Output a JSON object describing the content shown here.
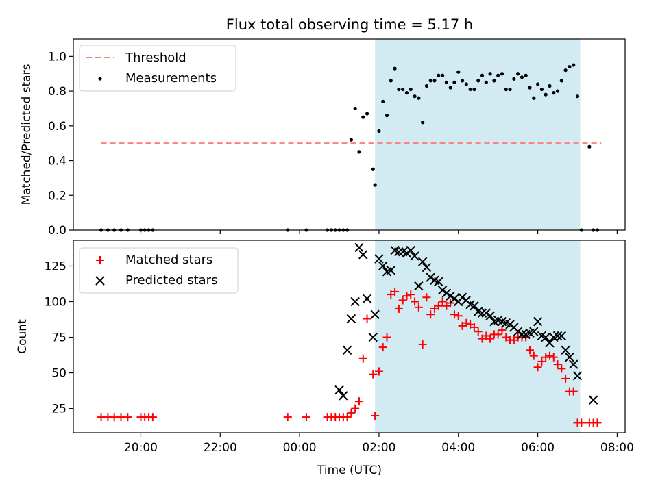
{
  "title": "Flux total observing time = 5.17 h",
  "chart_data": [
    {
      "type": "scatter",
      "panel": "top",
      "ylabel": "Matched/Predicted stars",
      "ylim": [
        0,
        1.1
      ],
      "yticks": [
        "0.0",
        "0.2",
        "0.4",
        "0.6",
        "0.8",
        "1.0"
      ],
      "ytick_values": [
        0,
        0.2,
        0.4,
        0.6,
        0.8,
        1.0
      ],
      "xlim": [
        18.3,
        32.2
      ],
      "grid": false,
      "legend_position": "top-left",
      "legend": [
        "Threshold",
        "Measurements"
      ],
      "highlight_span": [
        25.9,
        31.07
      ],
      "colors": {
        "threshold": "#ff7f7f",
        "measurements": "#000000",
        "span": "#add8e6"
      },
      "series": [
        {
          "name": "Threshold",
          "kind": "dashed-line",
          "x": [
            19.0,
            31.6
          ],
          "y": [
            0.5,
            0.5
          ]
        },
        {
          "name": "Measurements",
          "kind": "dots",
          "x": [
            19.0,
            19.17,
            19.33,
            19.5,
            19.67,
            20.0,
            20.1,
            20.2,
            20.3,
            23.7,
            24.17,
            24.7,
            24.8,
            24.9,
            25.0,
            25.1,
            25.2,
            25.3,
            25.4,
            25.5,
            25.6,
            25.7,
            25.85,
            25.9,
            26.0,
            26.1,
            26.2,
            26.3,
            26.4,
            26.5,
            26.6,
            26.7,
            26.8,
            26.9,
            27.0,
            27.1,
            27.2,
            27.3,
            27.4,
            27.5,
            27.6,
            27.7,
            27.8,
            27.9,
            28.0,
            28.1,
            28.2,
            28.3,
            28.4,
            28.5,
            28.6,
            28.7,
            28.8,
            28.9,
            29.0,
            29.1,
            29.2,
            29.3,
            29.4,
            29.5,
            29.6,
            29.7,
            29.8,
            29.9,
            30.0,
            30.1,
            30.2,
            30.3,
            30.4,
            30.5,
            30.6,
            30.7,
            30.8,
            30.9,
            31.0,
            31.1,
            31.3,
            31.4,
            31.5
          ],
          "y": [
            0.0,
            0.0,
            0.0,
            0.0,
            0.0,
            0.0,
            0.0,
            0.0,
            0.0,
            0.0,
            0.0,
            0.0,
            0.0,
            0.0,
            0.0,
            0.0,
            0.0,
            0.52,
            0.7,
            0.45,
            0.65,
            0.67,
            0.35,
            0.26,
            0.57,
            0.74,
            0.66,
            0.86,
            0.93,
            0.81,
            0.81,
            0.79,
            0.81,
            0.77,
            0.76,
            0.62,
            0.83,
            0.86,
            0.86,
            0.89,
            0.89,
            0.85,
            0.82,
            0.85,
            0.91,
            0.86,
            0.84,
            0.81,
            0.81,
            0.86,
            0.89,
            0.85,
            0.9,
            0.86,
            0.89,
            0.9,
            0.81,
            0.81,
            0.87,
            0.9,
            0.88,
            0.89,
            0.82,
            0.76,
            0.84,
            0.81,
            0.78,
            0.83,
            0.79,
            0.8,
            0.86,
            0.92,
            0.94,
            0.95,
            0.77,
            0.0,
            0.48,
            0.0,
            0.0
          ]
        }
      ]
    },
    {
      "type": "scatter",
      "panel": "bottom",
      "xlabel": "Time (UTC)",
      "ylabel": "Count",
      "ylim": [
        8,
        143
      ],
      "yticks": [
        "25",
        "50",
        "75",
        "100",
        "125"
      ],
      "ytick_values": [
        25,
        50,
        75,
        100,
        125
      ],
      "xlim": [
        18.3,
        32.2
      ],
      "xticks": [
        "20:00",
        "22:00",
        "00:00",
        "02:00",
        "04:00",
        "06:00",
        "08:00"
      ],
      "xtick_values": [
        20,
        22,
        24,
        26,
        28,
        30,
        32
      ],
      "grid": false,
      "legend_position": "top-left",
      "legend": [
        "Matched stars",
        "Predicted stars"
      ],
      "highlight_span": [
        25.9,
        31.07
      ],
      "colors": {
        "matched": "#ff0000",
        "predicted": "#000000",
        "span": "#add8e6"
      },
      "series": [
        {
          "name": "Matched stars",
          "marker": "plus",
          "x": [
            19.0,
            19.17,
            19.33,
            19.5,
            19.67,
            20.0,
            20.1,
            20.2,
            20.3,
            23.7,
            24.17,
            24.7,
            24.8,
            24.9,
            25.0,
            25.1,
            25.2,
            25.3,
            25.4,
            25.5,
            25.6,
            25.7,
            25.85,
            25.9,
            26.0,
            26.1,
            26.2,
            26.3,
            26.4,
            26.5,
            26.6,
            26.7,
            26.8,
            26.9,
            27.0,
            27.1,
            27.2,
            27.3,
            27.4,
            27.5,
            27.6,
            27.7,
            27.8,
            27.9,
            28.0,
            28.1,
            28.2,
            28.3,
            28.4,
            28.5,
            28.6,
            28.7,
            28.8,
            28.9,
            29.0,
            29.1,
            29.2,
            29.3,
            29.4,
            29.5,
            29.6,
            29.7,
            29.8,
            29.9,
            30.0,
            30.1,
            30.2,
            30.3,
            30.4,
            30.5,
            30.6,
            30.7,
            30.8,
            30.9,
            31.0,
            31.1,
            31.3,
            31.4,
            31.5
          ],
          "y": [
            19,
            19,
            19,
            19,
            19,
            19,
            19,
            19,
            19,
            19,
            19,
            19,
            19,
            19,
            19,
            19,
            19,
            22,
            25,
            30,
            60,
            88,
            49,
            20,
            51,
            68,
            75,
            105,
            107,
            95,
            101,
            104,
            105,
            100,
            96,
            70,
            103,
            91,
            95,
            97,
            100,
            97,
            99,
            91,
            90,
            83,
            85,
            84,
            82,
            79,
            74,
            76,
            74,
            77,
            77,
            80,
            75,
            73,
            73,
            75,
            75,
            75,
            66,
            62,
            54,
            58,
            61,
            62,
            61,
            56,
            53,
            46,
            37,
            37,
            15,
            15,
            15,
            15,
            15
          ],
          "note_y_overrides": "last four points near 15"
        },
        {
          "name": "Predicted stars",
          "marker": "x",
          "x": [
            25.0,
            25.1,
            25.2,
            25.3,
            25.4,
            25.5,
            25.6,
            25.7,
            25.85,
            25.9,
            26.0,
            26.1,
            26.2,
            26.3,
            26.4,
            26.5,
            26.6,
            26.7,
            26.8,
            26.9,
            27.0,
            27.1,
            27.2,
            27.3,
            27.4,
            27.5,
            27.6,
            27.7,
            27.8,
            27.9,
            28.0,
            28.1,
            28.2,
            28.3,
            28.4,
            28.5,
            28.6,
            28.7,
            28.8,
            28.9,
            29.0,
            29.1,
            29.2,
            29.3,
            29.4,
            29.5,
            29.6,
            29.7,
            29.8,
            29.9,
            30.0,
            30.1,
            30.2,
            30.3,
            30.4,
            30.5,
            30.6,
            30.7,
            30.8,
            30.9,
            31.0,
            31.4
          ],
          "y": [
            38,
            34,
            66,
            88,
            100,
            138,
            133,
            102,
            75,
            91,
            130,
            125,
            121,
            122,
            136,
            135,
            135,
            134,
            136,
            132,
            111,
            128,
            124,
            117,
            115,
            114,
            108,
            106,
            104,
            102,
            100,
            103,
            101,
            98,
            97,
            93,
            92,
            92,
            90,
            86,
            87,
            86,
            85,
            84,
            82,
            79,
            77,
            77,
            78,
            79,
            86,
            76,
            75,
            71,
            75,
            76,
            76,
            66,
            61,
            56,
            48,
            31
          ]
        }
      ]
    }
  ]
}
